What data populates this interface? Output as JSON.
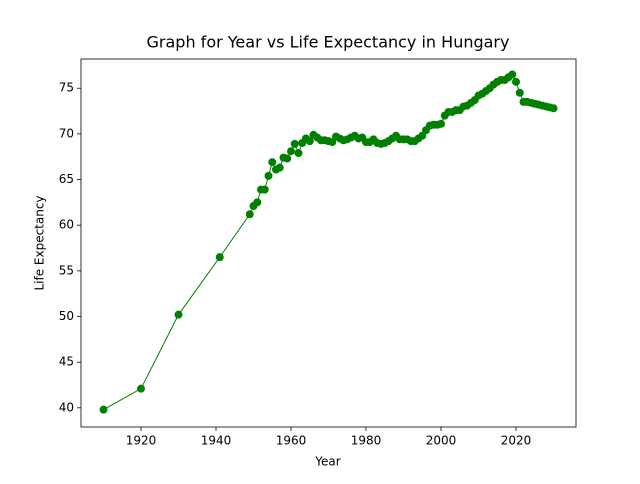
{
  "chart_data": {
    "type": "line",
    "title": "Graph for Year vs Life Expectancy in Hungary",
    "x_label": "Year",
    "y_label": "Life Expectancy",
    "x": [
      1910,
      1920,
      1930,
      1941,
      1949,
      1950,
      1951,
      1952,
      1953,
      1954,
      1955,
      1956,
      1957,
      1958,
      1959,
      1960,
      1961,
      1962,
      1963,
      1964,
      1965,
      1966,
      1967,
      1968,
      1969,
      1970,
      1971,
      1972,
      1973,
      1974,
      1975,
      1976,
      1977,
      1978,
      1979,
      1980,
      1981,
      1982,
      1983,
      1984,
      1985,
      1986,
      1987,
      1988,
      1989,
      1990,
      1991,
      1992,
      1993,
      1994,
      1995,
      1996,
      1997,
      1998,
      1999,
      2000,
      2001,
      2002,
      2003,
      2004,
      2005,
      2006,
      2007,
      2008,
      2009,
      2010,
      2011,
      2012,
      2013,
      2014,
      2015,
      2016,
      2017,
      2018,
      2019,
      2020,
      2021,
      2022,
      2023,
      2024,
      2025,
      2026,
      2027,
      2028,
      2029,
      2030
    ],
    "y": [
      39.8,
      42.1,
      50.2,
      56.5,
      61.2,
      62.1,
      62.5,
      63.9,
      63.9,
      65.4,
      66.9,
      66.1,
      66.3,
      67.4,
      67.3,
      68.1,
      68.9,
      67.9,
      69.0,
      69.5,
      69.2,
      69.9,
      69.6,
      69.3,
      69.3,
      69.2,
      69.1,
      69.7,
      69.5,
      69.3,
      69.4,
      69.6,
      69.8,
      69.5,
      69.6,
      69.1,
      69.1,
      69.4,
      69.0,
      68.9,
      69.0,
      69.2,
      69.5,
      69.8,
      69.4,
      69.4,
      69.4,
      69.2,
      69.2,
      69.5,
      69.8,
      70.4,
      70.9,
      71.0,
      71.0,
      71.1,
      72.0,
      72.4,
      72.4,
      72.6,
      72.6,
      73.0,
      73.1,
      73.4,
      73.7,
      74.2,
      74.4,
      74.7,
      75.0,
      75.4,
      75.7,
      75.9,
      75.9,
      76.2,
      76.5,
      75.7,
      74.5,
      73.5,
      73.5,
      73.4,
      73.3,
      73.2,
      73.1,
      73.0,
      72.9,
      72.8
    ],
    "color": "#008000",
    "xlim": [
      1904,
      2036
    ],
    "xticks": [
      1920,
      1940,
      1960,
      1980,
      2000,
      2020
    ],
    "ylim": [
      37.9,
      78.2
    ],
    "yticks": [
      40,
      45,
      50,
      55,
      60,
      65,
      70,
      75
    ],
    "grid": false
  }
}
